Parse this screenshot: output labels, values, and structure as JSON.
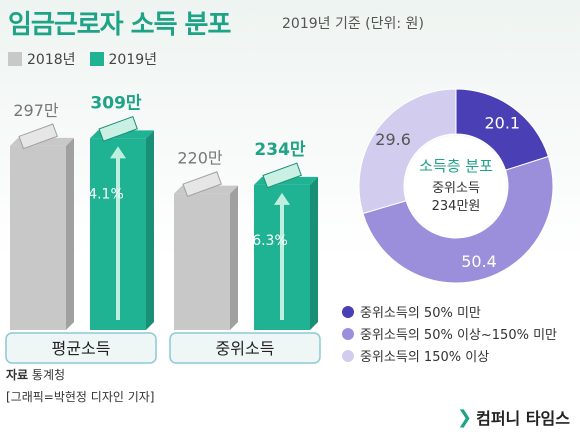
{
  "header": {
    "title": "임금근로자 소득 분포",
    "subtitle": "2019년 기준  (단위: 원)"
  },
  "legend": [
    {
      "label": "2018년",
      "color": "#c8c8c8"
    },
    {
      "label": "2019년",
      "color": "#1fb393"
    }
  ],
  "chart_data": [
    {
      "type": "bar",
      "categories": [
        "평균소득",
        "중위소득"
      ],
      "series": [
        {
          "name": "2018년",
          "values": [
            297,
            220
          ],
          "labels": [
            "297만",
            "220만"
          ]
        },
        {
          "name": "2019년",
          "values": [
            309,
            234
          ],
          "labels": [
            "309만",
            "234만"
          ]
        }
      ],
      "growth": [
        "4.1%",
        "6.3%"
      ]
    },
    {
      "type": "pie",
      "title": "소득층 분포",
      "center_text": [
        "중위소득",
        "234만원"
      ],
      "slices": [
        {
          "label": "중위소득의 50% 미만",
          "value": 20.1,
          "color": "#4a3fb4"
        },
        {
          "label": "중위소득의 50% 이상~150% 미만",
          "value": 50.4,
          "color": "#9b8fdc"
        },
        {
          "label": "중위소득의 150% 이상",
          "value": 29.6,
          "color": "#d2cdef"
        }
      ]
    }
  ],
  "footer": {
    "source_label": "자료",
    "source_value": "통계청",
    "credit": "[그래픽=박현정 디자인 기자]",
    "brand": "컴퍼니 타임스",
    "brand_mark": "❯"
  }
}
